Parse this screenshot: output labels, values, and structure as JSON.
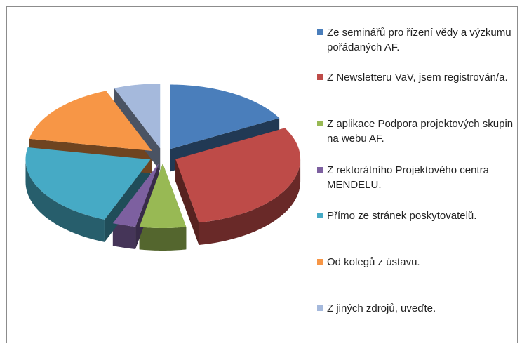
{
  "chart_data": {
    "type": "pie3d",
    "categories": [
      "Ze seminářů pro řízení vědy a výzkumu pořádaných AF.",
      "Z Newsletteru VaV, jsem registrován/a.",
      "Z aplikace Podpora projektových skupin na webu AF.",
      "Z rektorátního Projektového centra MENDELU.",
      "Přímo ze stránek poskytovatelů.",
      "Od kolegů z ústavu.",
      "Z jiných zdrojů, uveďte."
    ],
    "values": [
      17,
      30,
      6,
      3,
      22,
      16,
      6
    ],
    "colors": [
      "#4a7ebb",
      "#be4b48",
      "#98b954",
      "#7d60a0",
      "#46aac5",
      "#f79646",
      "#a5b9dc"
    ]
  }
}
